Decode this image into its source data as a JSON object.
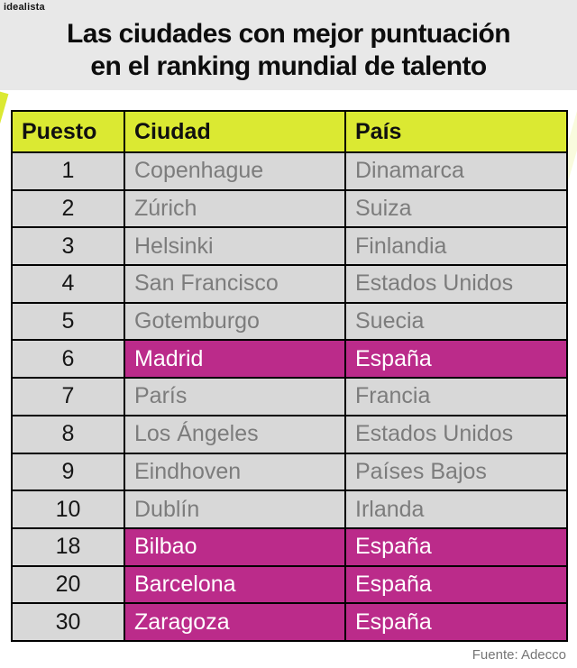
{
  "brand": {
    "logo_text": "idealista"
  },
  "header": {
    "title_lines": [
      "Las ciudades con mejor puntuación",
      "en el ranking mundial de talento"
    ]
  },
  "chart_data": {
    "type": "table",
    "title": "Las ciudades con mejor puntuación en el ranking mundial de talento",
    "columns": [
      "Puesto",
      "Ciudad",
      "País"
    ],
    "rows": [
      {
        "puesto": "1",
        "ciudad": "Copenhague",
        "pais": "Dinamarca",
        "highlight": false
      },
      {
        "puesto": "2",
        "ciudad": "Zúrich",
        "pais": "Suiza",
        "highlight": false
      },
      {
        "puesto": "3",
        "ciudad": "Helsinki",
        "pais": "Finlandia",
        "highlight": false
      },
      {
        "puesto": "4",
        "ciudad": "San Francisco",
        "pais": "Estados Unidos",
        "highlight": false
      },
      {
        "puesto": "5",
        "ciudad": "Gotemburgo",
        "pais": "Suecia",
        "highlight": false
      },
      {
        "puesto": "6",
        "ciudad": "Madrid",
        "pais": "España",
        "highlight": true
      },
      {
        "puesto": "7",
        "ciudad": "París",
        "pais": "Francia",
        "highlight": false
      },
      {
        "puesto": "8",
        "ciudad": "Los Ángeles",
        "pais": "Estados Unidos",
        "highlight": false
      },
      {
        "puesto": "9",
        "ciudad": "Eindhoven",
        "pais": "Países Bajos",
        "highlight": false
      },
      {
        "puesto": "10",
        "ciudad": "Dublín",
        "pais": "Irlanda",
        "highlight": false
      },
      {
        "puesto": "18",
        "ciudad": "Bilbao",
        "pais": "España",
        "highlight": true
      },
      {
        "puesto": "20",
        "ciudad": "Barcelona",
        "pais": "España",
        "highlight": true
      },
      {
        "puesto": "30",
        "ciudad": "Zaragoza",
        "pais": "España",
        "highlight": true
      }
    ],
    "source": "Fuente: Adecco",
    "legend_position": "none",
    "grid": true
  },
  "colors": {
    "accent_lime": "#dbe932",
    "highlight_magenta": "#bb2b8a",
    "row_gray": "#d8d8d8",
    "masthead_gray": "#e8e8e8",
    "muted_text": "#7c7c7c",
    "border_black": "#000000"
  }
}
